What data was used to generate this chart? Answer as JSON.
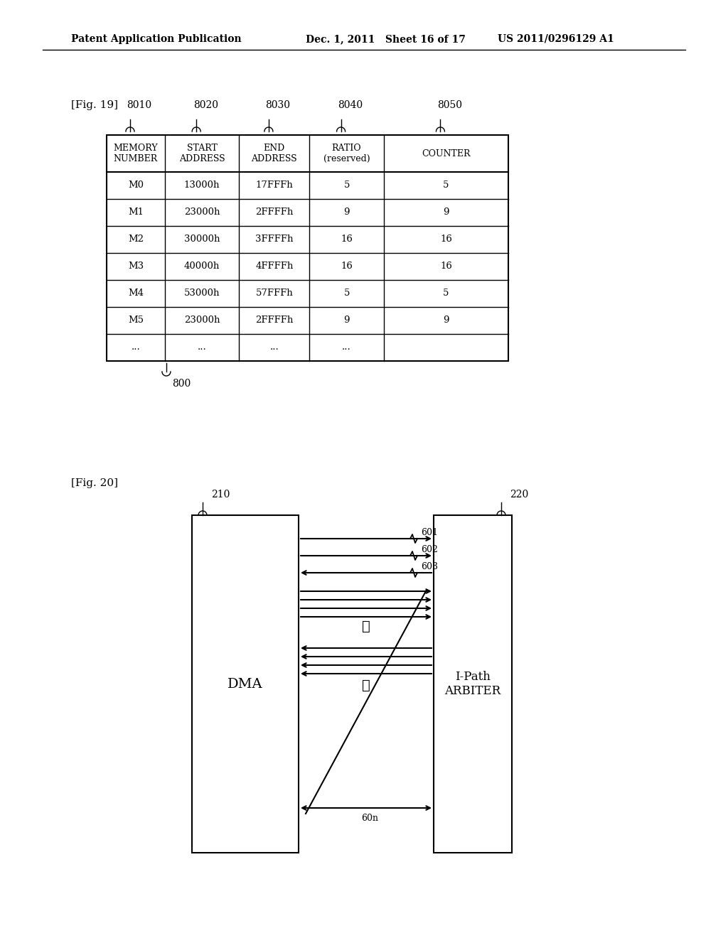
{
  "header_text_left": "Patent Application Publication",
  "header_text_mid": "Dec. 1, 2011   Sheet 16 of 17",
  "header_text_right": "US 2011/0296129 A1",
  "fig19_label": "[Fig. 19]",
  "fig20_label": "[Fig. 20]",
  "table_col_labels": [
    "MEMORY\nNUMBER",
    "START\nADDRESS",
    "END\nADDRESS",
    "RATIO\n(reserved)",
    "COUNTER"
  ],
  "table_col_ids": [
    "8010",
    "8020",
    "8030",
    "8040",
    "8050"
  ],
  "table_data": [
    [
      "M0",
      "13000h",
      "17FFFh",
      "5",
      "5"
    ],
    [
      "M1",
      "23000h",
      "2FFFFh",
      "9",
      "9"
    ],
    [
      "M2",
      "30000h",
      "3FFFFh",
      "16",
      "16"
    ],
    [
      "M3",
      "40000h",
      "4FFFFh",
      "16",
      "16"
    ],
    [
      "M4",
      "53000h",
      "57FFFh",
      "5",
      "5"
    ],
    [
      "M5",
      "23000h",
      "2FFFFh",
      "9",
      "9"
    ],
    [
      "...",
      "...",
      "...",
      "...",
      ""
    ]
  ],
  "table_label": "800",
  "dma_label": "DMA",
  "dma_ref": "210",
  "arbiter_label": "I-Path\nARBITER",
  "arbiter_ref": "220",
  "channel_labels": [
    "601",
    "602",
    "603",
    "60n"
  ],
  "background_color": "#ffffff"
}
